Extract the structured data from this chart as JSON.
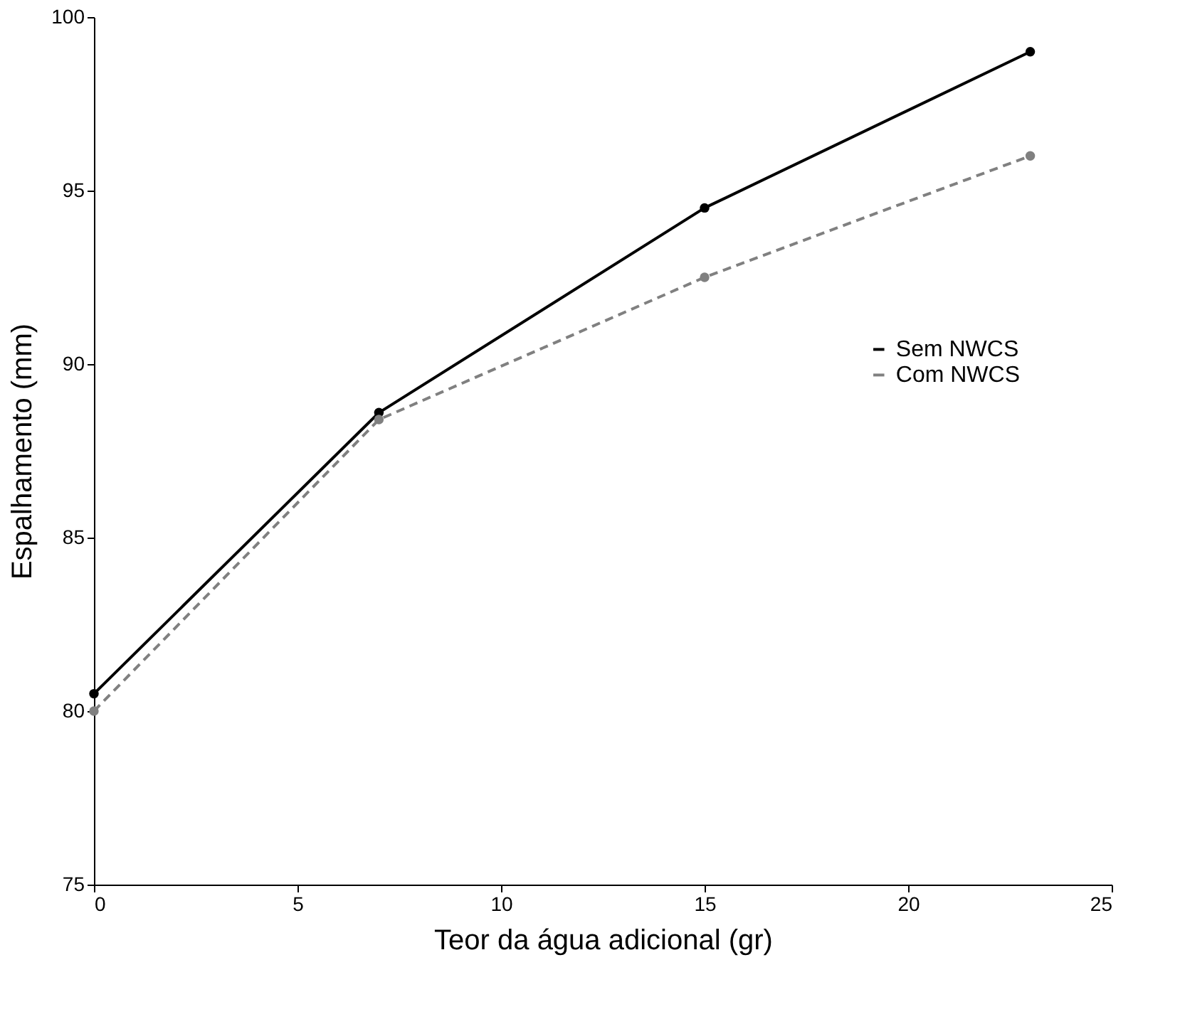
{
  "chart_data": {
    "type": "line",
    "xlabel": "Teor da água adicional (gr)",
    "ylabel": "Espalhamento (mm)",
    "x": [
      0,
      7,
      15,
      23
    ],
    "series": [
      {
        "name": "Sem NWCS",
        "color": "#000000",
        "line_style": "solid",
        "values": [
          80.5,
          88.6,
          94.5,
          99
        ]
      },
      {
        "name": "Com NWCS",
        "color": "#808080",
        "line_style": "dashed",
        "values": [
          80,
          88.4,
          92.5,
          96
        ]
      }
    ],
    "xlim": [
      0,
      25
    ],
    "xticks": [
      0,
      5,
      10,
      15,
      20,
      25
    ],
    "ylim": [
      75,
      100
    ],
    "yticks": [
      75,
      80,
      85,
      90,
      95,
      100
    ],
    "grid": false,
    "legend": "right",
    "marker": "circle"
  }
}
